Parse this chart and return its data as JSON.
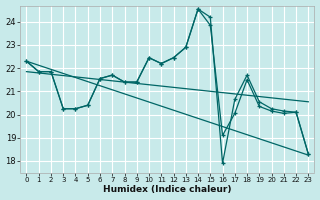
{
  "xlabel": "Humidex (Indice chaleur)",
  "bg_color": "#c8eaea",
  "grid_color": "#ffffff",
  "line_color": "#006666",
  "xlim": [
    -0.5,
    23.5
  ],
  "ylim": [
    17.5,
    24.7
  ],
  "yticks": [
    18,
    19,
    20,
    21,
    22,
    23,
    24
  ],
  "xticks": [
    0,
    1,
    2,
    3,
    4,
    5,
    6,
    7,
    8,
    9,
    10,
    11,
    12,
    13,
    14,
    15,
    16,
    17,
    18,
    19,
    20,
    21,
    22,
    23
  ],
  "line1_x": [
    0,
    1,
    2,
    3,
    4,
    5,
    6,
    7,
    8,
    9,
    10,
    11,
    12,
    13,
    14,
    15,
    16,
    17,
    18,
    19,
    20,
    21,
    22,
    23
  ],
  "line1_y": [
    22.3,
    21.85,
    21.85,
    20.25,
    20.25,
    20.4,
    21.55,
    21.7,
    21.4,
    21.4,
    22.45,
    22.2,
    22.45,
    22.9,
    24.55,
    23.85,
    19.1,
    20.05,
    21.5,
    20.35,
    20.15,
    20.05,
    20.1,
    18.3
  ],
  "line2_x": [
    0,
    1,
    2,
    3,
    4,
    5,
    6,
    7,
    8,
    9,
    10,
    11,
    12,
    13,
    14,
    15,
    16,
    17,
    18,
    19,
    20,
    21,
    22,
    23
  ],
  "line2_y": [
    22.3,
    21.85,
    21.85,
    20.25,
    20.25,
    20.4,
    21.55,
    21.7,
    21.4,
    21.4,
    22.45,
    22.2,
    22.45,
    22.9,
    24.55,
    24.2,
    17.9,
    20.65,
    21.7,
    20.55,
    20.25,
    20.15,
    20.1,
    18.3
  ],
  "line3_x": [
    0,
    23
  ],
  "line3_y": [
    22.3,
    18.25
  ],
  "line4_x": [
    0,
    23
  ],
  "line4_y": [
    21.85,
    20.55
  ]
}
